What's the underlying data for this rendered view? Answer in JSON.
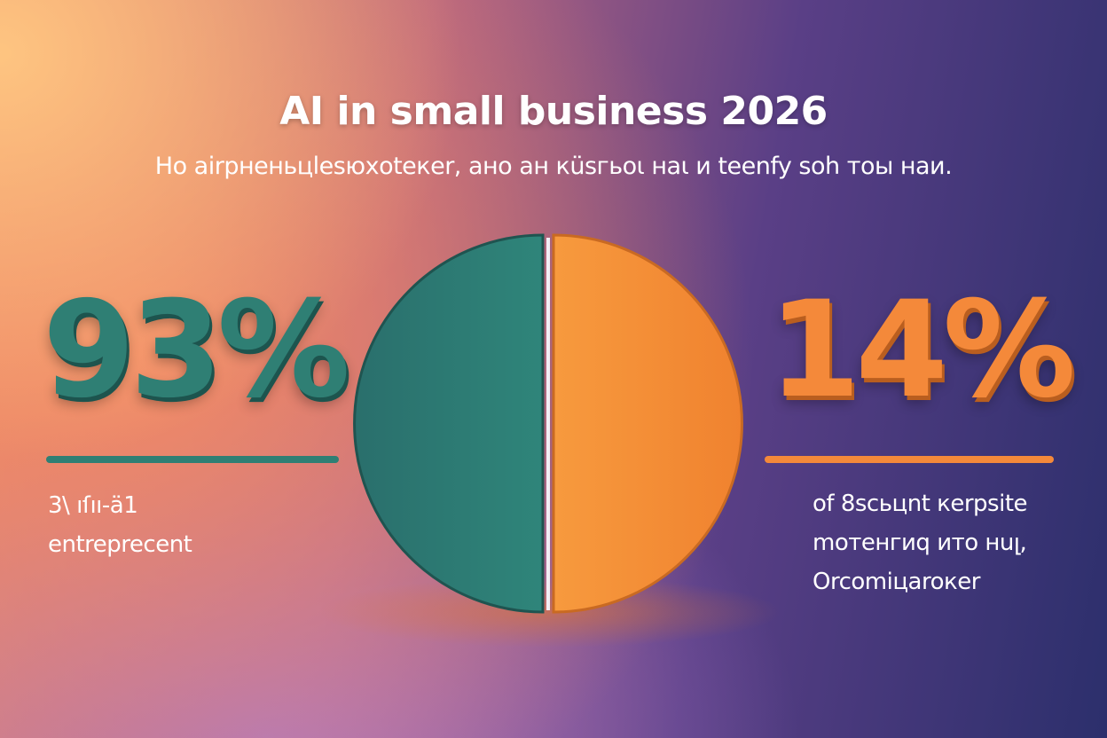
{
  "header": {
    "title": "AI in small business 2026",
    "subtitle": "Ho airpненьцlesюхotекеr, ано ан кüsгьоι наι и teenfy soh тоы наи."
  },
  "stats": [
    {
      "value": "93%",
      "caption": [
        "3\\ ıſıı-ä1",
        "entreprecent"
      ]
    },
    {
      "value": "14%",
      "caption": [
        "of 8sсьцnt кеrpsite",
        "moтeнгиq ито нuլ,",
        "Orcomiцaroкer"
      ]
    }
  ]
}
